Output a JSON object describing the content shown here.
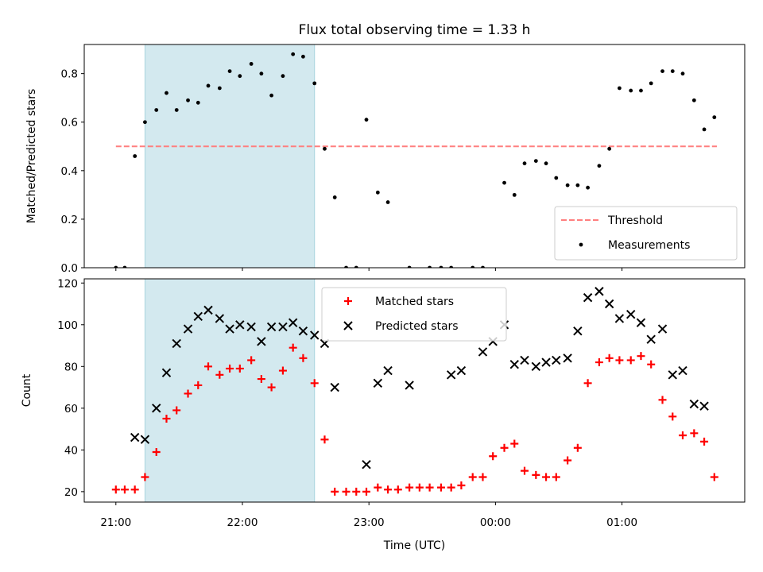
{
  "chart_data": {
    "title": "Flux total observing time = 1.33 h",
    "shaded_interval": {
      "x_start_h": 21.23,
      "x_end_h": 22.57,
      "color": "#d3e9ef"
    },
    "x_ticks": [
      {
        "value": 21,
        "label": "21:00"
      },
      {
        "value": 22,
        "label": "22:00"
      },
      {
        "value": 23,
        "label": "23:00"
      },
      {
        "value": 24,
        "label": "00:00"
      },
      {
        "value": 25,
        "label": "01:00"
      }
    ],
    "xlim": [
      20.75,
      25.97
    ],
    "xlabel": "Time (UTC)",
    "panels": [
      {
        "type": "scatter",
        "ylabel": "Matched/Predicted stars",
        "ylim": [
          0,
          0.92
        ],
        "y_ticks": [
          "0.0",
          "0.2",
          "0.4",
          "0.6",
          "0.8"
        ],
        "y_tick_values": [
          0,
          0.2,
          0.4,
          0.6,
          0.8
        ],
        "legend": {
          "position": "lower right"
        },
        "series": [
          {
            "name": "Threshold",
            "kind": "dashed-line",
            "color": "#ff7f7f",
            "x": [
              21.0,
              25.75
            ],
            "y": [
              0.5,
              0.5
            ]
          },
          {
            "name": "Measurements",
            "kind": "dot",
            "color": "#000000",
            "x": [
              21.0,
              21.07,
              21.15,
              21.23,
              21.32,
              21.4,
              21.48,
              21.57,
              21.65,
              21.73,
              21.82,
              21.9,
              21.98,
              22.07,
              22.15,
              22.23,
              22.32,
              22.4,
              22.48,
              22.57,
              22.65,
              22.73,
              22.82,
              22.9,
              22.98,
              23.07,
              23.15,
              23.32,
              23.48,
              23.57,
              23.65,
              23.82,
              23.9,
              24.07,
              24.15,
              24.23,
              24.32,
              24.4,
              24.48,
              24.57,
              24.65,
              24.73,
              24.82,
              24.9,
              24.98,
              25.07,
              25.15,
              25.23,
              25.32,
              25.4,
              25.48,
              25.57,
              25.65,
              25.73
            ],
            "y": [
              0.0,
              0.0,
              0.46,
              0.6,
              0.65,
              0.72,
              0.65,
              0.69,
              0.68,
              0.75,
              0.74,
              0.81,
              0.79,
              0.84,
              0.8,
              0.71,
              0.79,
              0.88,
              0.87,
              0.76,
              0.49,
              0.29,
              0.0,
              0.0,
              0.61,
              0.31,
              0.27,
              0.0,
              0.0,
              0.0,
              0.0,
              0.0,
              0.0,
              0.35,
              0.3,
              0.43,
              0.44,
              0.43,
              0.37,
              0.34,
              0.34,
              0.33,
              0.42,
              0.49,
              0.74,
              0.73,
              0.73,
              0.76,
              0.81,
              0.81,
              0.8,
              0.69,
              0.57,
              0.62
            ]
          }
        ]
      },
      {
        "type": "scatter",
        "ylabel": "Count",
        "ylim": [
          15,
          122
        ],
        "y_ticks": [
          "20",
          "40",
          "60",
          "80",
          "100",
          "120"
        ],
        "y_tick_values": [
          20,
          40,
          60,
          80,
          100,
          120
        ],
        "legend": {
          "position": "upper center"
        },
        "series": [
          {
            "name": "Matched stars",
            "kind": "plus",
            "color": "#ff0000",
            "x": [
              21.0,
              21.07,
              21.15,
              21.23,
              21.32,
              21.4,
              21.48,
              21.57,
              21.65,
              21.73,
              21.82,
              21.9,
              21.98,
              22.07,
              22.15,
              22.23,
              22.32,
              22.4,
              22.48,
              22.57,
              22.65,
              22.73,
              22.82,
              22.9,
              22.98,
              23.07,
              23.15,
              23.23,
              23.32,
              23.4,
              23.48,
              23.57,
              23.65,
              23.73,
              23.82,
              23.9,
              23.98,
              24.07,
              24.15,
              24.23,
              24.32,
              24.4,
              24.48,
              24.57,
              24.65,
              24.73,
              24.82,
              24.9,
              24.98,
              25.07,
              25.15,
              25.23,
              25.32,
              25.4,
              25.48,
              25.57,
              25.65,
              25.73
            ],
            "y": [
              21,
              21,
              21,
              27,
              39,
              55,
              59,
              67,
              71,
              80,
              76,
              79,
              79,
              83,
              74,
              70,
              78,
              89,
              84,
              72,
              45,
              20,
              20,
              20,
              20,
              22,
              21,
              21,
              22,
              22,
              22,
              22,
              22,
              23,
              27,
              27,
              37,
              41,
              43,
              30,
              28,
              27,
              27,
              35,
              41,
              72,
              82,
              84,
              83,
              83,
              85,
              81,
              64,
              56,
              47,
              48,
              44,
              27
            ]
          },
          {
            "name": "Predicted stars",
            "kind": "x",
            "color": "#000000",
            "x": [
              21.15,
              21.23,
              21.32,
              21.4,
              21.48,
              21.57,
              21.65,
              21.73,
              21.82,
              21.9,
              21.98,
              22.07,
              22.15,
              22.23,
              22.32,
              22.4,
              22.48,
              22.57,
              22.65,
              22.73,
              22.98,
              23.07,
              23.15,
              23.32,
              23.65,
              23.73,
              23.9,
              23.98,
              24.07,
              24.15,
              24.23,
              24.32,
              24.4,
              24.48,
              24.57,
              24.65,
              24.73,
              24.82,
              24.9,
              24.98,
              25.07,
              25.15,
              25.23,
              25.32,
              25.4,
              25.48,
              25.57,
              25.65
            ],
            "y": [
              46,
              45,
              60,
              77,
              91,
              98,
              104,
              107,
              103,
              98,
              100,
              99,
              92,
              99,
              99,
              101,
              97,
              95,
              91,
              70,
              33,
              72,
              78,
              71,
              76,
              78,
              87,
              92,
              100,
              81,
              83,
              80,
              82,
              83,
              84,
              97,
              113,
              116,
              110,
              103,
              105,
              101,
              93,
              98,
              76,
              78,
              62,
              61
            ]
          }
        ]
      }
    ]
  }
}
